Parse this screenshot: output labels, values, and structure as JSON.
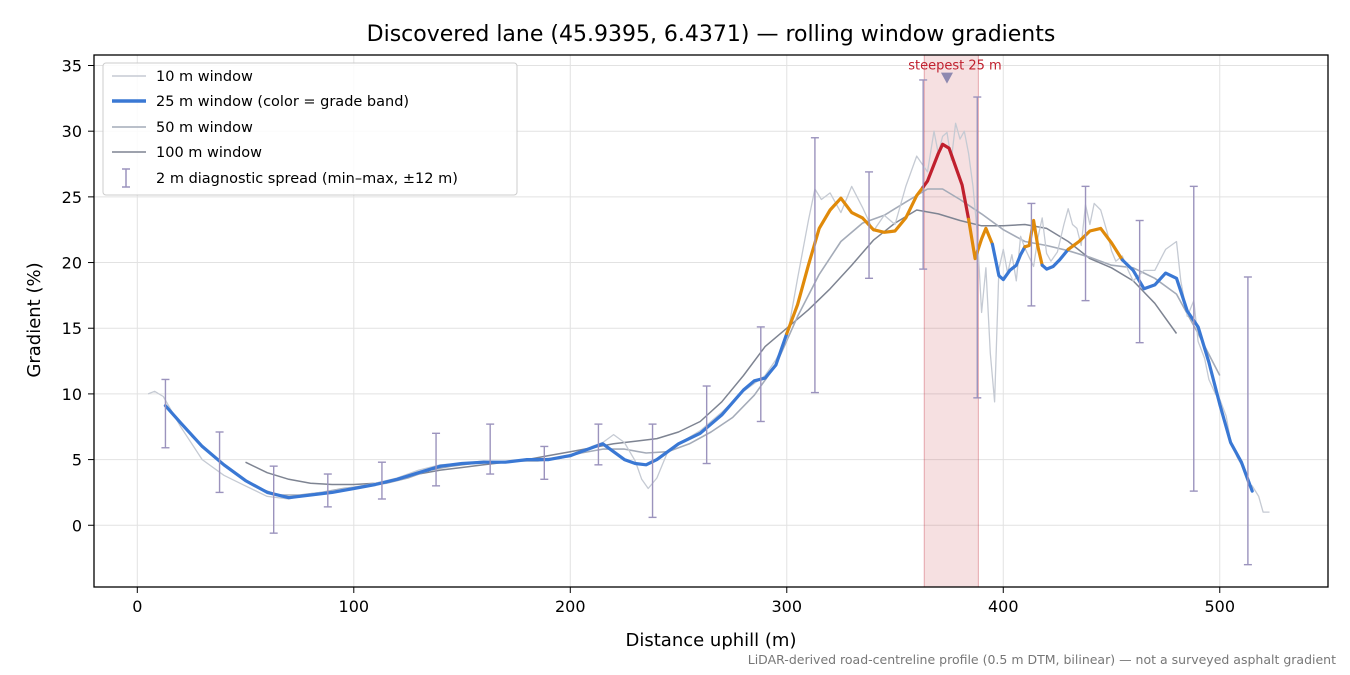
{
  "chart_data": {
    "type": "line",
    "title": "Discovered lane (45.9395, 6.4371) — rolling window gradients",
    "xlabel": "Distance uphill (m)",
    "ylabel": "Gradient (%)",
    "xlim": [
      -20,
      550
    ],
    "ylim": [
      -4.7,
      35.8
    ],
    "x_ticks": [
      0,
      100,
      200,
      300,
      400,
      500
    ],
    "y_ticks": [
      0,
      5,
      10,
      15,
      20,
      25,
      30,
      35
    ],
    "grid": true,
    "legend_position": "top-left",
    "annotation": {
      "text": "steepest 25 m",
      "x": 374,
      "y": 34,
      "span": [
        363.5,
        388.5
      ]
    },
    "footnote": "LiDAR-derived road-centreline profile (0.5 m DTM, bilinear) — not a surveyed asphalt gradient",
    "colors": {
      "band_gentle": "#3a78d4",
      "band_steep": "#e08a0a",
      "band_extreme": "#c0202e"
    },
    "series": [
      {
        "name": "10 m window",
        "color": "#c5cad3",
        "x": [
          5,
          8,
          12,
          20,
          30,
          40,
          50,
          60,
          70,
          80,
          90,
          100,
          110,
          120,
          130,
          140,
          150,
          160,
          170,
          180,
          190,
          200,
          205,
          210,
          215,
          220,
          225,
          230,
          233,
          236,
          240,
          245,
          250,
          260,
          270,
          280,
          290,
          295,
          300,
          305,
          310,
          313,
          316,
          320,
          325,
          330,
          335,
          340,
          345,
          350,
          355,
          360,
          365,
          368,
          370,
          372,
          374,
          376,
          378,
          380,
          382,
          384,
          386,
          388,
          390,
          392,
          394,
          396,
          398,
          400,
          402,
          404,
          406,
          408,
          410,
          412,
          414,
          416,
          418,
          420,
          422,
          425,
          428,
          430,
          432,
          434,
          436,
          438,
          440,
          442,
          445,
          448,
          450,
          452,
          455,
          458,
          460,
          465,
          470,
          475,
          480,
          482,
          485,
          488,
          490,
          493,
          495,
          498,
          500,
          503,
          505,
          508,
          510,
          513,
          515,
          518,
          520,
          523
        ],
        "y": [
          10.0,
          10.2,
          9.8,
          7.5,
          5.0,
          3.8,
          3.0,
          2.2,
          2.0,
          2.4,
          2.6,
          2.9,
          3.2,
          3.6,
          4.2,
          4.6,
          4.7,
          4.9,
          4.8,
          5.0,
          5.1,
          5.2,
          5.6,
          6.0,
          6.3,
          6.9,
          6.3,
          4.9,
          3.5,
          2.8,
          3.6,
          5.6,
          6.2,
          7.2,
          8.6,
          10.2,
          11.4,
          12.6,
          14.2,
          18.8,
          23.2,
          25.6,
          24.8,
          25.3,
          23.8,
          25.8,
          24.2,
          22.4,
          23.6,
          22.9,
          25.8,
          28.1,
          26.9,
          30.0,
          28.3,
          29.6,
          29.9,
          27.8,
          30.6,
          29.4,
          30.0,
          28.3,
          25.8,
          22.2,
          16.2,
          19.6,
          13.1,
          9.4,
          19.5,
          21.0,
          19.2,
          20.6,
          18.6,
          22.0,
          21.1,
          20.4,
          19.7,
          21.9,
          23.4,
          20.7,
          20.1,
          20.8,
          22.9,
          24.1,
          22.9,
          22.6,
          21.3,
          24.4,
          22.9,
          24.5,
          24.0,
          22.3,
          20.9,
          20.1,
          20.5,
          19.3,
          18.6,
          19.4,
          19.4,
          21.0,
          21.6,
          18.6,
          15.9,
          17.1,
          14.0,
          12.7,
          11.1,
          10.0,
          9.6,
          8.3,
          6.4,
          5.2,
          4.6,
          3.2,
          3.0,
          2.2,
          1.0,
          1.0
        ]
      },
      {
        "name": "25 m window (color = grade band)",
        "color": "#3a78d4",
        "color_rule": "color = grade band",
        "x": [
          13,
          20,
          30,
          40,
          50,
          60,
          70,
          80,
          90,
          100,
          110,
          120,
          130,
          140,
          150,
          160,
          170,
          180,
          190,
          200,
          210,
          215,
          220,
          225,
          230,
          235,
          240,
          245,
          250,
          260,
          270,
          280,
          285,
          290,
          295,
          300,
          305,
          310,
          315,
          320,
          325,
          330,
          335,
          340,
          345,
          350,
          355,
          360,
          365,
          370,
          372,
          375,
          378,
          381,
          384,
          387,
          390,
          392,
          395,
          398,
          400,
          403,
          406,
          408,
          410,
          412,
          414,
          416,
          418,
          420,
          423,
          426,
          430,
          435,
          440,
          445,
          450,
          455,
          460,
          465,
          470,
          475,
          480,
          485,
          490,
          495,
          500,
          505,
          510,
          515
        ],
        "y": [
          9.1,
          7.8,
          6.0,
          4.6,
          3.4,
          2.5,
          2.1,
          2.3,
          2.5,
          2.8,
          3.1,
          3.5,
          4.0,
          4.5,
          4.7,
          4.8,
          4.8,
          5.0,
          5.0,
          5.3,
          5.9,
          6.2,
          5.6,
          5.0,
          4.7,
          4.6,
          5.0,
          5.6,
          6.2,
          7.0,
          8.4,
          10.3,
          11.0,
          11.2,
          12.2,
          14.6,
          16.8,
          19.8,
          22.6,
          24.0,
          24.9,
          23.8,
          23.4,
          22.5,
          22.3,
          22.4,
          23.4,
          25.1,
          26.2,
          28.3,
          29.0,
          28.7,
          27.3,
          25.9,
          23.3,
          20.3,
          21.8,
          22.6,
          21.4,
          19.0,
          18.7,
          19.4,
          19.8,
          20.6,
          21.2,
          21.3,
          23.2,
          21.2,
          19.8,
          19.5,
          19.7,
          20.2,
          21.0,
          21.6,
          22.4,
          22.6,
          21.5,
          20.2,
          19.4,
          18.0,
          18.3,
          19.2,
          18.8,
          16.3,
          15.1,
          12.4,
          9.2,
          6.3,
          4.8,
          2.6
        ],
        "bands": [
          {
            "band": "gentle",
            "x": [
              13,
              300
            ]
          },
          {
            "band": "steep",
            "x": [
              300,
              363
            ]
          },
          {
            "band": "extreme",
            "x": [
              363,
              384
            ]
          },
          {
            "band": "steep",
            "x": [
              384,
              395
            ]
          },
          {
            "band": "gentle",
            "x": [
              395,
              410
            ]
          },
          {
            "band": "steep",
            "x": [
              410,
              418
            ]
          },
          {
            "band": "gentle",
            "x": [
              418,
              430
            ]
          },
          {
            "band": "steep",
            "x": [
              430,
              455
            ]
          },
          {
            "band": "gentle",
            "x": [
              455,
              515
            ]
          }
        ]
      },
      {
        "name": "50 m window",
        "color": "#a4abb8",
        "x": [
          25,
          35,
          45,
          55,
          65,
          75,
          85,
          95,
          105,
          115,
          125,
          135,
          145,
          155,
          165,
          175,
          185,
          195,
          205,
          215,
          225,
          235,
          245,
          255,
          265,
          275,
          285,
          295,
          305,
          315,
          325,
          335,
          345,
          355,
          365,
          372,
          380,
          390,
          400,
          410,
          420,
          430,
          440,
          450,
          460,
          470,
          480,
          490,
          500
        ],
        "y": [
          6.8,
          5.3,
          4.0,
          2.9,
          2.3,
          2.3,
          2.5,
          2.8,
          3.0,
          3.2,
          3.6,
          4.2,
          4.5,
          4.7,
          4.8,
          4.9,
          4.9,
          5.1,
          5.5,
          5.8,
          5.8,
          5.5,
          5.6,
          6.2,
          7.1,
          8.2,
          9.9,
          12.2,
          15.9,
          19.1,
          21.6,
          23.0,
          23.6,
          24.6,
          25.6,
          25.6,
          24.8,
          23.7,
          22.5,
          21.6,
          21.3,
          20.9,
          20.4,
          19.8,
          19.6,
          18.8,
          17.6,
          14.6,
          11.4
        ]
      },
      {
        "name": "100 m window",
        "color": "#7e8492",
        "x": [
          50,
          60,
          70,
          80,
          90,
          100,
          110,
          120,
          130,
          140,
          150,
          160,
          170,
          180,
          190,
          200,
          210,
          220,
          230,
          240,
          250,
          260,
          270,
          280,
          290,
          300,
          310,
          320,
          330,
          340,
          350,
          360,
          370,
          380,
          390,
          400,
          410,
          420,
          430,
          440,
          450,
          460,
          470,
          480
        ],
        "y": [
          4.8,
          4.0,
          3.5,
          3.2,
          3.1,
          3.1,
          3.2,
          3.5,
          3.9,
          4.2,
          4.4,
          4.6,
          4.8,
          5.0,
          5.3,
          5.6,
          5.9,
          6.2,
          6.4,
          6.6,
          7.1,
          7.9,
          9.4,
          11.4,
          13.6,
          15.0,
          16.4,
          18.0,
          19.8,
          21.7,
          23.0,
          24.0,
          23.7,
          23.2,
          22.8,
          22.8,
          22.9,
          22.6,
          21.6,
          20.3,
          19.6,
          18.6,
          16.9,
          14.6
        ]
      }
    ],
    "diagnostic_spread": {
      "name": "2 m diagnostic spread (min–max, ±12 m)",
      "color": "#9b93bd",
      "points": [
        {
          "x": 13,
          "min": 5.9,
          "max": 11.1
        },
        {
          "x": 38,
          "min": 2.5,
          "max": 7.1
        },
        {
          "x": 63,
          "min": -0.6,
          "max": 4.5
        },
        {
          "x": 88,
          "min": 1.4,
          "max": 3.9
        },
        {
          "x": 113,
          "min": 2.0,
          "max": 4.8
        },
        {
          "x": 138,
          "min": 3.0,
          "max": 7.0
        },
        {
          "x": 163,
          "min": 3.9,
          "max": 7.7
        },
        {
          "x": 188,
          "min": 3.5,
          "max": 6.0
        },
        {
          "x": 213,
          "min": 4.6,
          "max": 7.7
        },
        {
          "x": 238,
          "min": 0.6,
          "max": 7.7
        },
        {
          "x": 263,
          "min": 4.7,
          "max": 10.6
        },
        {
          "x": 288,
          "min": 7.9,
          "max": 15.1
        },
        {
          "x": 313,
          "min": 10.1,
          "max": 29.5
        },
        {
          "x": 338,
          "min": 18.8,
          "max": 26.9
        },
        {
          "x": 363,
          "min": 19.5,
          "max": 33.9
        },
        {
          "x": 388,
          "min": 9.7,
          "max": 32.6
        },
        {
          "x": 413,
          "min": 16.7,
          "max": 24.5
        },
        {
          "x": 438,
          "min": 17.1,
          "max": 25.8
        },
        {
          "x": 463,
          "min": 13.9,
          "max": 23.2
        },
        {
          "x": 488,
          "min": 2.6,
          "max": 25.8
        },
        {
          "x": 513,
          "min": -3.0,
          "max": 18.9
        }
      ]
    }
  }
}
